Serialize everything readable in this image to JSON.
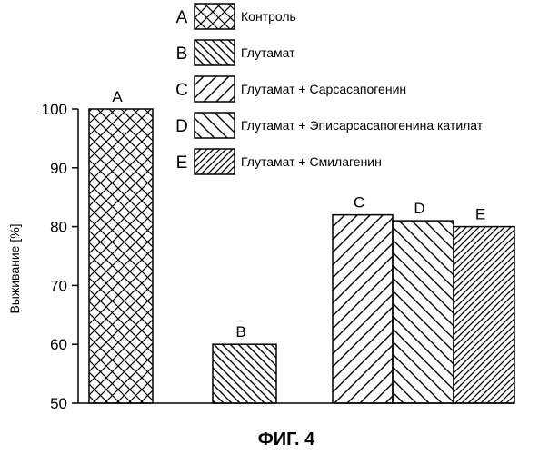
{
  "chart_data": {
    "type": "bar",
    "title": "",
    "xlabel": "",
    "ylabel": "Выживание [%]",
    "ylim": [
      50,
      100
    ],
    "yticks": [
      50,
      60,
      70,
      80,
      90,
      100
    ],
    "grid": false,
    "legend_position": "top",
    "categories": [
      "A",
      "B",
      "C",
      "D",
      "E"
    ],
    "values": [
      100,
      60,
      82,
      81,
      80
    ],
    "legend": [
      {
        "letter": "A",
        "label": "Контроль",
        "pattern": "crosshatch"
      },
      {
        "letter": "B",
        "label": "Глутамат",
        "pattern": "diag-down"
      },
      {
        "letter": "C",
        "label": "Глутамат + Сарсасапогенин",
        "pattern": "diag-up-wide"
      },
      {
        "letter": "D",
        "label": "Глутамат + Эписарсасапогенина катилат",
        "pattern": "diag-down-wide"
      },
      {
        "letter": "E",
        "label": "Глутамат + Смилагенин",
        "pattern": "diag-up-dense"
      }
    ]
  },
  "caption": "ФИГ. 4"
}
